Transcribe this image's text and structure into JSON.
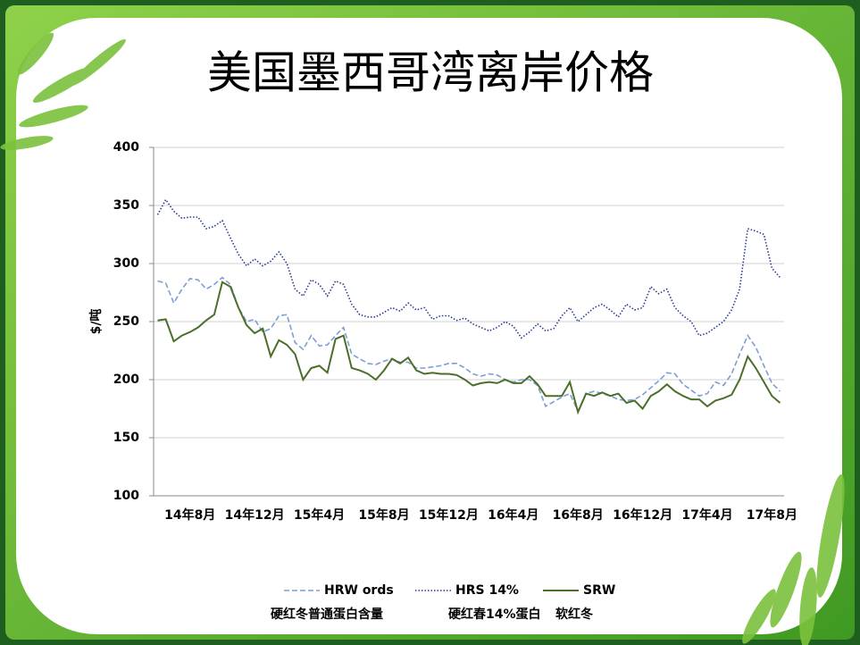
{
  "chart_data": {
    "type": "line",
    "title": "美国墨西哥湾离岸价格",
    "ylabel": "$/吨",
    "categories": [
      null,
      null,
      null,
      null,
      "14年8月",
      null,
      null,
      null,
      null,
      null,
      null,
      null,
      "14年12月",
      null,
      null,
      null,
      null,
      null,
      null,
      null,
      "15年4月",
      null,
      null,
      null,
      null,
      null,
      null,
      null,
      "15年8月",
      null,
      null,
      null,
      null,
      null,
      null,
      null,
      "15年12月",
      null,
      null,
      null,
      null,
      null,
      null,
      null,
      "16年4月",
      null,
      null,
      null,
      null,
      null,
      null,
      null,
      "16年8月",
      null,
      null,
      null,
      null,
      null,
      null,
      null,
      "16年12月",
      null,
      null,
      null,
      null,
      null,
      null,
      null,
      "17年4月",
      null,
      null,
      null,
      null,
      null,
      null,
      null,
      "17年8月",
      null
    ],
    "ylim": [
      100,
      400
    ],
    "yticks": [
      100,
      150,
      200,
      250,
      300,
      350,
      400
    ],
    "grid": true,
    "series": [
      {
        "name": "HRW ords",
        "label_cn": "硬红冬普通蛋白含量",
        "color": "#7b9fd3",
        "dash": "dashed",
        "values": [
          285,
          283,
          266,
          278,
          287,
          286,
          278,
          282,
          288,
          282,
          262,
          250,
          252,
          241,
          244,
          255,
          256,
          232,
          226,
          238,
          229,
          230,
          238,
          245,
          222,
          218,
          214,
          213,
          216,
          218,
          215,
          215,
          210,
          210,
          211,
          212,
          214,
          214,
          210,
          205,
          203,
          205,
          204,
          200,
          198,
          200,
          200,
          195,
          177,
          181,
          185,
          188,
          173,
          188,
          190,
          188,
          186,
          183,
          182,
          183,
          187,
          193,
          199,
          206,
          205,
          196,
          191,
          186,
          188,
          198,
          195,
          205,
          222,
          238,
          228,
          212,
          197,
          190
        ]
      },
      {
        "name": "HRS 14%",
        "label_cn": "硬红春14%蛋白",
        "color": "#2a3a8f",
        "dash": "dotted",
        "values": [
          342,
          355,
          345,
          339,
          340,
          340,
          330,
          332,
          337,
          322,
          308,
          298,
          304,
          298,
          302,
          310,
          300,
          278,
          272,
          286,
          282,
          272,
          285,
          282,
          265,
          256,
          254,
          254,
          258,
          262,
          259,
          266,
          260,
          262,
          252,
          255,
          255,
          251,
          253,
          248,
          245,
          242,
          245,
          250,
          246,
          236,
          241,
          248,
          242,
          244,
          255,
          262,
          250,
          256,
          262,
          265,
          260,
          254,
          265,
          260,
          262,
          280,
          274,
          278,
          262,
          255,
          250,
          238,
          240,
          245,
          250,
          260,
          278,
          330,
          328,
          325,
          296,
          288
        ]
      },
      {
        "name": "SRW",
        "label_cn": "软红冬",
        "color": "#4b6f2b",
        "dash": "solid",
        "values": [
          251,
          252,
          233,
          238,
          241,
          245,
          251,
          256,
          284,
          280,
          262,
          247,
          240,
          244,
          220,
          234,
          230,
          222,
          200,
          210,
          212,
          206,
          235,
          238,
          210,
          208,
          205,
          200,
          208,
          218,
          214,
          219,
          208,
          205,
          206,
          205,
          205,
          204,
          200,
          195,
          197,
          198,
          197,
          200,
          197,
          197,
          203,
          196,
          186,
          186,
          186,
          198,
          172,
          188,
          186,
          189,
          186,
          188,
          180,
          182,
          175,
          186,
          190,
          196,
          190,
          186,
          183,
          183,
          177,
          182,
          184,
          187,
          200,
          220,
          210,
          198,
          186,
          180
        ]
      }
    ]
  }
}
